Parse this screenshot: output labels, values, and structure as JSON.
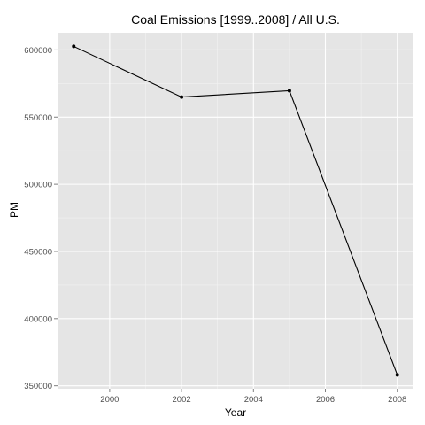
{
  "chart_data": {
    "type": "line",
    "title": "Coal Emissions [1999..2008] / All U.S.",
    "xlabel": "Year",
    "ylabel": "PM",
    "x": [
      1999,
      2002,
      2005,
      2008
    ],
    "series": [
      {
        "values": [
          602624,
          564941,
          569654,
          358083
        ]
      }
    ],
    "xlim": [
      1998.55,
      2008.45
    ],
    "ylim": [
      347800,
      612800
    ],
    "xticks": [
      2000,
      2002,
      2004,
      2006,
      2008
    ],
    "yticks": [
      350000,
      400000,
      450000,
      500000,
      550000,
      600000
    ],
    "xtick_labels": [
      "2000",
      "2002",
      "2004",
      "2006",
      "2008"
    ],
    "ytick_labels": [
      "350000",
      "400000",
      "450000",
      "500000",
      "550000",
      "600000"
    ],
    "grid": true,
    "markers": true,
    "colors": {
      "panel_background": "#e5e5e5",
      "grid_major": "#ffffff",
      "grid_minor": "#f2f2f2",
      "line": "#000000",
      "tick_text": "#4d4d4d"
    }
  }
}
